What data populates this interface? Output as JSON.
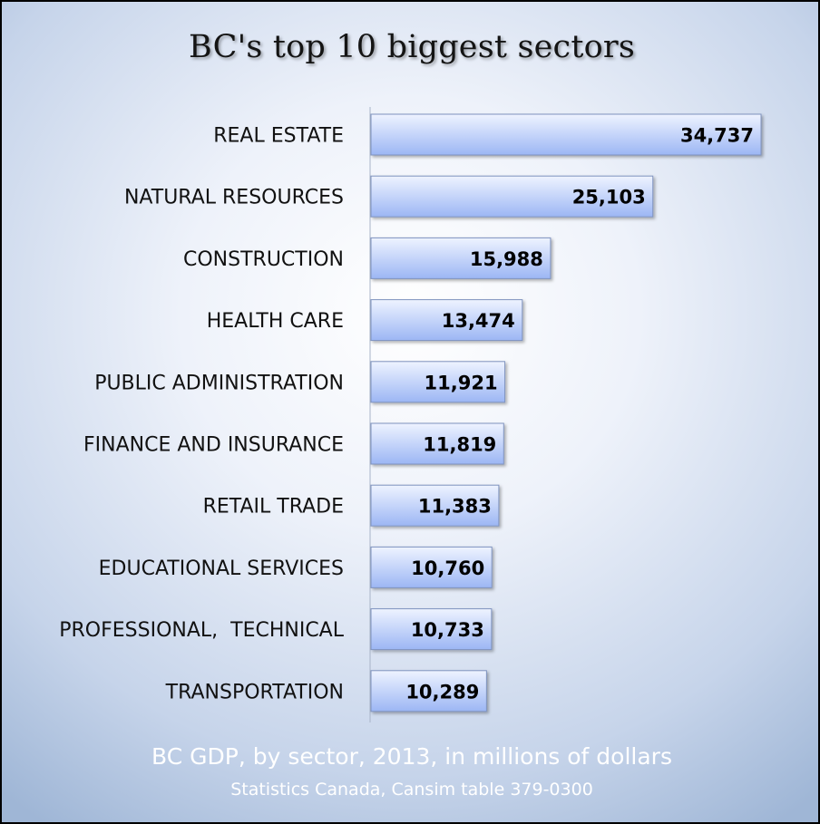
{
  "chart_data": {
    "type": "bar",
    "orientation": "horizontal",
    "title": "BC's top 10 biggest sectors",
    "subtitle": "BC GDP, by sector, 2013, in millions of dollars",
    "source": "Statistics Canada, Cansim table 379-0300",
    "categories": [
      "REAL ESTATE",
      "NATURAL RESOURCES",
      "CONSTRUCTION",
      "HEALTH CARE",
      "PUBLIC ADMINISTRATION",
      "FINANCE AND INSURANCE",
      "RETAIL TRADE",
      "EDUCATIONAL SERVICES",
      "PROFESSIONAL,  TECHNICAL",
      "TRANSPORTATION"
    ],
    "values": [
      34737,
      25103,
      15988,
      13474,
      11921,
      11819,
      11383,
      10760,
      10733,
      10289
    ],
    "value_labels": [
      "34,737",
      "25,103",
      "15,988",
      "13,474",
      "11,921",
      "11,819",
      "11,383",
      "10,760",
      "10,733",
      "10,289"
    ],
    "xlim": [
      0,
      34737
    ],
    "grid": false,
    "legend": "none",
    "colors": {
      "bar_light": "#eef3ff",
      "bar_dark": "#9cb6f4",
      "bar_border": "#7f93bf",
      "axis": "#a8b4c8"
    }
  }
}
